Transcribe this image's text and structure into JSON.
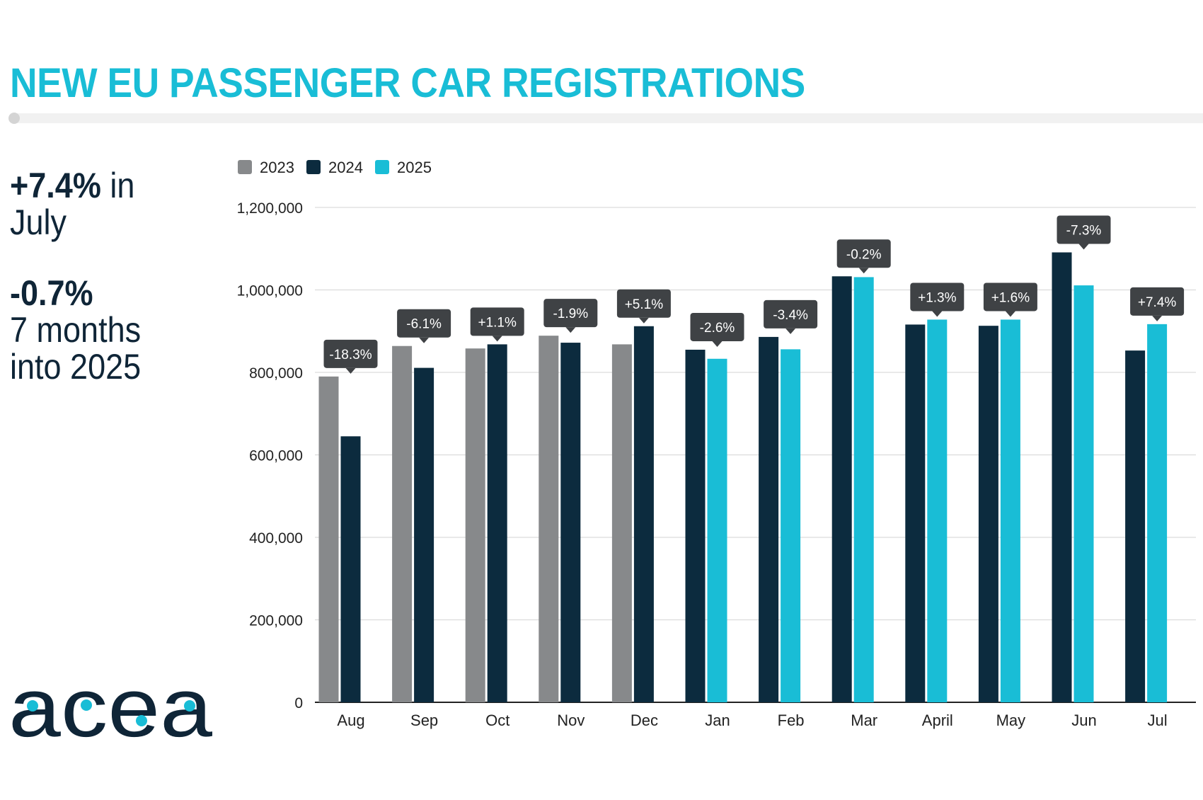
{
  "header": {
    "title": "NEW EU PASSENGER CAR REGISTRATIONS"
  },
  "stats": {
    "july_value": "+7.4%",
    "july_text": " in",
    "july_text2": "July",
    "ytd_value": "-0.7%",
    "ytd_line1": "7 months",
    "ytd_line2": "into 2025"
  },
  "logo": {
    "text": "acea"
  },
  "colors": {
    "accent": "#19bdd6",
    "series_2023": "#87898b",
    "series_2024": "#0c2b3e",
    "series_2025": "#19bdd6",
    "callout": "#3f4245"
  },
  "chart_data": {
    "type": "bar",
    "title": "NEW EU PASSENGER CAR REGISTRATIONS",
    "xlabel": "",
    "ylabel": "",
    "ylim": [
      0,
      1200000
    ],
    "yticks": [
      0,
      200000,
      400000,
      600000,
      800000,
      1000000,
      1200000
    ],
    "ytick_labels": [
      "0",
      "200,000",
      "400,000",
      "600,000",
      "800,000",
      "1,000,000",
      "1,200,000"
    ],
    "grid": true,
    "legend": "top-left",
    "categories": [
      "Aug",
      "Sep",
      "Oct",
      "Nov",
      "Dec",
      "Jan",
      "Feb",
      "Mar",
      "April",
      "May",
      "Jun",
      "Jul"
    ],
    "series": [
      {
        "name": "2023",
        "color": "#87898b",
        "values": [
          790000,
          864000,
          858000,
          889000,
          868000,
          null,
          null,
          null,
          null,
          null,
          null,
          null
        ]
      },
      {
        "name": "2024",
        "color": "#0c2b3e",
        "values": [
          645000,
          811000,
          868000,
          872000,
          912000,
          855000,
          886000,
          1033000,
          916000,
          913000,
          1091000,
          853000
        ]
      },
      {
        "name": "2025",
        "color": "#19bdd6",
        "values": [
          null,
          null,
          null,
          null,
          null,
          833000,
          856000,
          1031000,
          928000,
          928000,
          1011000,
          917000
        ]
      }
    ],
    "annotations": [
      "-18.3%",
      "-6.1%",
      "+1.1%",
      "-1.9%",
      "+5.1%",
      "-2.6%",
      "-3.4%",
      "-0.2%",
      "+1.3%",
      "+1.6%",
      "-7.3%",
      "+7.4%"
    ]
  }
}
